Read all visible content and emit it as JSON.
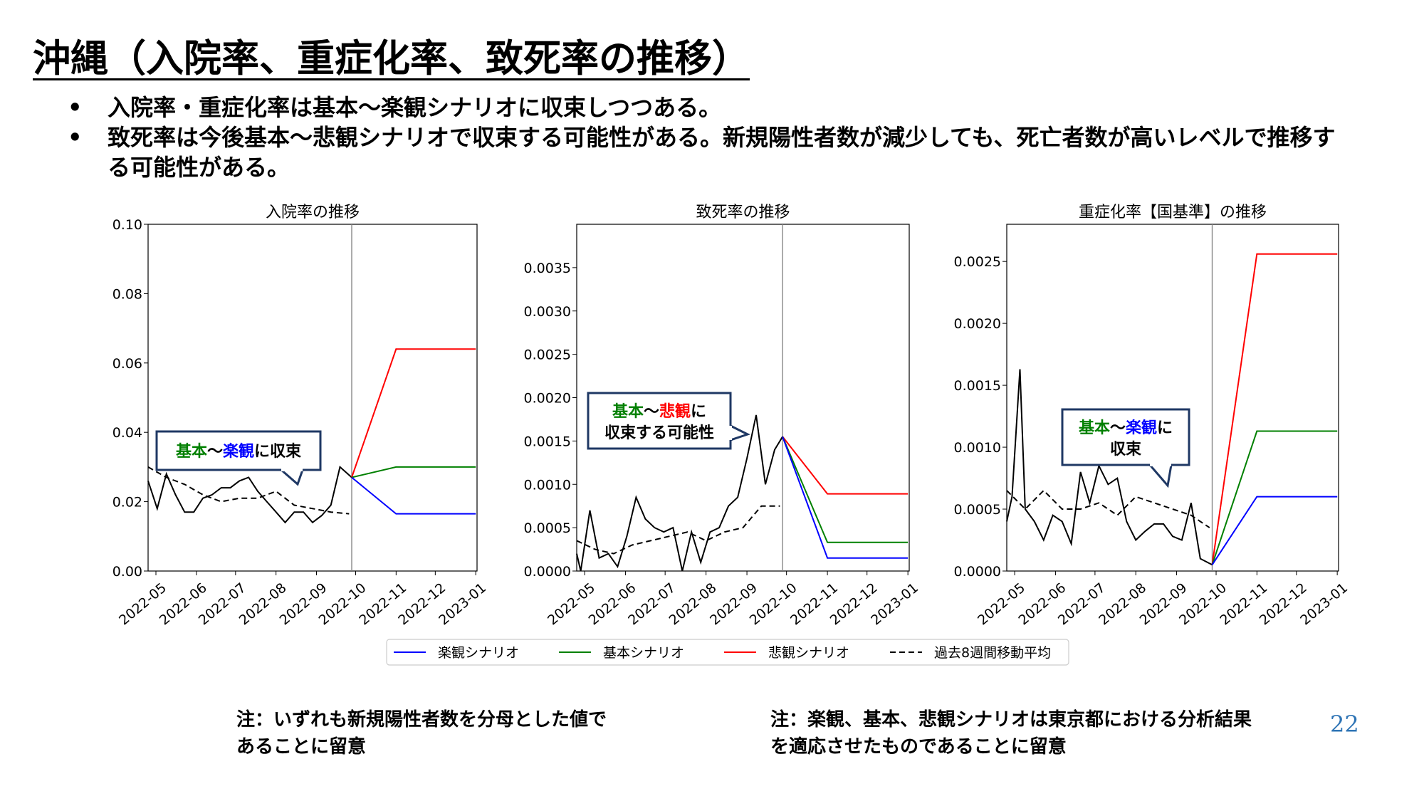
{
  "title": "沖縄（入院率、重症化率、致死率の推移）",
  "bullets": [
    {
      "text": "入院率・重症化率は基本～楽観シナリオに収束しつつある。"
    },
    {
      "text": "致死率は今後基本～悲観シナリオで収束する可能性がある。新規陽性者数が減少しても、死亡者数が高いレベルで推移する可能性がある。"
    }
  ],
  "notes": [
    "注：いずれも新規陽性者数を分母とした値であることに留意",
    "注：楽観、基本、悲観シナリオは東京都における分析結果を適応させたものであることに留意"
  ],
  "page_number": "22",
  "colors": {
    "optimistic": "#0000ff",
    "base": "#008000",
    "pessimistic": "#ff0000",
    "moving_avg": "#000000",
    "page_number": "#2e74b5"
  },
  "legend": [
    "楽観シナリオ",
    "基本シナリオ",
    "悲観シナリオ",
    "過去8週間移動平均"
  ],
  "chart_data": [
    {
      "type": "line",
      "title": "入院率の推移",
      "ylim": [
        0,
        0.1
      ],
      "yticks": [
        "0.00",
        "0.02",
        "0.04",
        "0.06",
        "0.08",
        "0.10"
      ],
      "xticks": [
        "2022-05",
        "2022-06",
        "2022-07",
        "2022-08",
        "2022-09",
        "2022-10",
        "2022-11",
        "2022-12",
        "2023-01"
      ],
      "forecast_start": "2022-09-28",
      "annotation": [
        {
          "text": "基本",
          "color": "base"
        },
        {
          "text": "～",
          "color": "black"
        },
        {
          "text": "楽観",
          "color": "optimistic"
        },
        {
          "text": "に収束",
          "color": "black"
        }
      ],
      "observed": {
        "x": [
          "2022-04-25",
          "2022-05-02",
          "2022-05-09",
          "2022-05-16",
          "2022-05-23",
          "2022-05-30",
          "2022-06-06",
          "2022-06-13",
          "2022-06-20",
          "2022-06-27",
          "2022-07-04",
          "2022-07-11",
          "2022-07-18",
          "2022-07-25",
          "2022-08-01",
          "2022-08-08",
          "2022-08-15",
          "2022-08-22",
          "2022-08-29",
          "2022-09-05",
          "2022-09-12",
          "2022-09-19",
          "2022-09-28"
        ],
        "y": [
          0.026,
          0.018,
          0.028,
          0.022,
          0.017,
          0.017,
          0.021,
          0.022,
          0.024,
          0.024,
          0.026,
          0.027,
          0.023,
          0.02,
          0.017,
          0.014,
          0.017,
          0.017,
          0.014,
          0.016,
          0.019,
          0.03,
          0.027
        ]
      },
      "moving_avg": {
        "x": [
          "2022-04-25",
          "2022-05-09",
          "2022-05-23",
          "2022-06-06",
          "2022-06-20",
          "2022-07-04",
          "2022-07-18",
          "2022-08-01",
          "2022-08-15",
          "2022-08-29",
          "2022-09-12",
          "2022-09-26"
        ],
        "y": [
          0.03,
          0.027,
          0.025,
          0.022,
          0.02,
          0.021,
          0.021,
          0.023,
          0.019,
          0.018,
          0.017,
          0.0165
        ]
      },
      "scenarios": {
        "x": [
          "2022-09-28",
          "2022-11-01",
          "2023-01-01"
        ],
        "optimistic": [
          0.027,
          0.0165,
          0.0165
        ],
        "base": [
          0.027,
          0.03,
          0.03
        ],
        "pessimistic": [
          0.027,
          0.064,
          0.064
        ]
      }
    },
    {
      "type": "line",
      "title": "致死率の推移",
      "ylim": [
        0,
        0.004
      ],
      "yticks": [
        "0.0000",
        "0.0005",
        "0.0010",
        "0.0015",
        "0.0020",
        "0.0025",
        "0.0030",
        "0.0035"
      ],
      "xticks": [
        "2022-05",
        "2022-06",
        "2022-07",
        "2022-08",
        "2022-09",
        "2022-10",
        "2022-11",
        "2022-12",
        "2023-01"
      ],
      "forecast_start": "2022-09-28",
      "annotation": [
        {
          "text": "基本",
          "color": "base"
        },
        {
          "text": "～",
          "color": "black"
        },
        {
          "text": "悲観",
          "color": "pessimistic"
        },
        {
          "text": "に収束する可能性",
          "color": "black"
        }
      ],
      "observed": {
        "x": [
          "2022-04-25",
          "2022-04-28",
          "2022-05-05",
          "2022-05-12",
          "2022-05-19",
          "2022-05-26",
          "2022-06-02",
          "2022-06-09",
          "2022-06-16",
          "2022-06-23",
          "2022-06-30",
          "2022-07-07",
          "2022-07-14",
          "2022-07-21",
          "2022-07-28",
          "2022-08-04",
          "2022-08-11",
          "2022-08-18",
          "2022-08-25",
          "2022-09-01",
          "2022-09-08",
          "2022-09-15",
          "2022-09-22",
          "2022-09-28"
        ],
        "y": [
          0.0002,
          0.0,
          0.0007,
          0.00015,
          0.0002,
          5e-05,
          0.0004,
          0.00085,
          0.0006,
          0.0005,
          0.00045,
          0.0005,
          0.0,
          0.00045,
          0.0001,
          0.00045,
          0.0005,
          0.00075,
          0.00085,
          0.0013,
          0.0018,
          0.001,
          0.0014,
          0.00155
        ]
      },
      "moving_avg": {
        "x": [
          "2022-04-25",
          "2022-05-09",
          "2022-05-23",
          "2022-06-06",
          "2022-06-20",
          "2022-07-04",
          "2022-07-18",
          "2022-08-01",
          "2022-08-15",
          "2022-08-29",
          "2022-09-12",
          "2022-09-26"
        ],
        "y": [
          0.00035,
          0.00025,
          0.0002,
          0.0003,
          0.00035,
          0.0004,
          0.00045,
          0.00035,
          0.00045,
          0.0005,
          0.00075,
          0.00075
        ]
      },
      "scenarios": {
        "x": [
          "2022-09-28",
          "2022-11-01",
          "2023-01-01"
        ],
        "optimistic": [
          0.00155,
          0.00015,
          0.00015
        ],
        "base": [
          0.00155,
          0.00033,
          0.00033
        ],
        "pessimistic": [
          0.00155,
          0.00089,
          0.00089
        ]
      }
    },
    {
      "type": "line",
      "title": "重症化率【国基準】の推移",
      "ylim": [
        0,
        0.0028
      ],
      "yticks": [
        "0.0000",
        "0.0005",
        "0.0010",
        "0.0015",
        "0.0020",
        "0.0025"
      ],
      "xticks": [
        "2022-05",
        "2022-06",
        "2022-07",
        "2022-08",
        "2022-09",
        "2022-10",
        "2022-11",
        "2022-12",
        "2023-01"
      ],
      "forecast_start": "2022-09-28",
      "annotation": [
        {
          "text": "基本",
          "color": "base"
        },
        {
          "text": "～",
          "color": "black"
        },
        {
          "text": "楽観",
          "color": "optimistic"
        },
        {
          "text": "に収束",
          "color": "black"
        }
      ],
      "observed": {
        "x": [
          "2022-04-25",
          "2022-04-29",
          "2022-05-05",
          "2022-05-09",
          "2022-05-16",
          "2022-05-23",
          "2022-05-30",
          "2022-06-06",
          "2022-06-13",
          "2022-06-20",
          "2022-06-27",
          "2022-07-04",
          "2022-07-11",
          "2022-07-18",
          "2022-07-25",
          "2022-08-01",
          "2022-08-08",
          "2022-08-15",
          "2022-08-22",
          "2022-08-29",
          "2022-09-05",
          "2022-09-12",
          "2022-09-19",
          "2022-09-28"
        ],
        "y": [
          0.0004,
          0.0006,
          0.00163,
          0.0005,
          0.0004,
          0.00025,
          0.00045,
          0.0004,
          0.00022,
          0.0008,
          0.00055,
          0.00085,
          0.0007,
          0.00075,
          0.0004,
          0.00025,
          0.00032,
          0.00038,
          0.00038,
          0.00028,
          0.00025,
          0.00055,
          0.0001,
          5e-05
        ]
      },
      "moving_avg": {
        "x": [
          "2022-04-25",
          "2022-05-09",
          "2022-05-23",
          "2022-06-06",
          "2022-06-20",
          "2022-07-04",
          "2022-07-18",
          "2022-08-01",
          "2022-08-15",
          "2022-08-29",
          "2022-09-12",
          "2022-09-26"
        ],
        "y": [
          0.00065,
          0.0005,
          0.00065,
          0.0005,
          0.0005,
          0.00055,
          0.00045,
          0.0006,
          0.00055,
          0.0005,
          0.00045,
          0.00035
        ]
      },
      "scenarios": {
        "x": [
          "2022-09-28",
          "2022-11-01",
          "2023-01-01"
        ],
        "optimistic": [
          5e-05,
          0.0006,
          0.0006
        ],
        "base": [
          5e-05,
          0.00113,
          0.00113
        ],
        "pessimistic": [
          5e-05,
          0.00256,
          0.00256
        ]
      }
    }
  ]
}
